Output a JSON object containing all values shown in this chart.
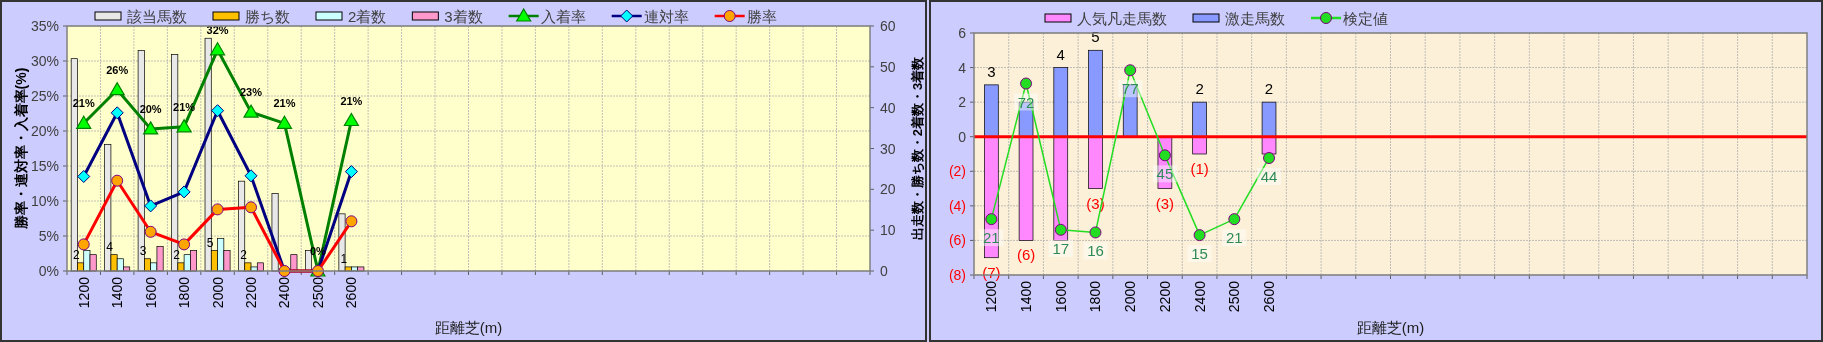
{
  "chart_data": [
    {
      "type": "bar",
      "xlabel": "距離芝(m)",
      "ylabel": "勝率・連対率・入着率(%)",
      "y2label": "出走数・勝ち数・2着数・3着数",
      "categories": [
        "1200",
        "1400",
        "1600",
        "1800",
        "2000",
        "2200",
        "2400",
        "2500",
        "2600",
        null,
        null,
        null,
        null,
        null,
        null,
        null,
        null,
        null,
        null,
        null,
        null,
        null,
        null,
        null
      ],
      "ylim": [
        0,
        35
      ],
      "yticks": [
        {
          "value": 0,
          "label": "0%"
        },
        {
          "value": 5,
          "label": "5%"
        },
        {
          "value": 10,
          "label": "10%"
        },
        {
          "value": 15,
          "label": "15%"
        },
        {
          "value": 20,
          "label": "20%"
        },
        {
          "value": 25,
          "label": "25%"
        },
        {
          "value": 30,
          "label": "30%"
        },
        {
          "value": 35,
          "label": "35%"
        }
      ],
      "y2lim": [
        0,
        60
      ],
      "y2ticks": [
        0,
        10,
        20,
        30,
        40,
        50,
        60
      ],
      "grid": true,
      "legend": "top",
      "series": [
        {
          "name": "該当馬数",
          "type": "bar",
          "axis": "y2",
          "color": "#e8e8e8",
          "values": [
            52,
            31,
            54,
            53,
            57,
            22,
            19,
            5,
            14,
            null,
            null,
            null,
            null,
            null,
            null,
            null,
            null,
            null,
            null,
            null,
            null,
            null,
            null,
            null
          ]
        },
        {
          "name": "勝ち数",
          "type": "bar",
          "axis": "y2",
          "color": "#ffc000",
          "values": [
            2,
            4,
            3,
            2,
            5,
            2,
            0,
            0,
            1,
            null,
            null,
            null,
            null,
            null,
            null,
            null,
            null,
            null,
            null,
            null,
            null,
            null,
            null,
            null
          ],
          "value_labels": [
            "2",
            "4",
            "3",
            "2",
            "5",
            "2",
            null,
            null,
            "1",
            null,
            null,
            null,
            null,
            null,
            null,
            null,
            null,
            null,
            null,
            null,
            null,
            null,
            null,
            null
          ]
        },
        {
          "name": "2着数",
          "type": "bar",
          "axis": "y2",
          "color": "#ccffff",
          "values": [
            5,
            3,
            2,
            4,
            8,
            1,
            0,
            0,
            1,
            null,
            null,
            null,
            null,
            null,
            null,
            null,
            null,
            null,
            null,
            null,
            null,
            null,
            null,
            null
          ]
        },
        {
          "name": "3着数",
          "type": "bar",
          "axis": "y2",
          "color": "#ff99cc",
          "values": [
            4,
            1,
            6,
            5,
            5,
            2,
            4,
            0,
            1,
            null,
            null,
            null,
            null,
            null,
            null,
            null,
            null,
            null,
            null,
            null,
            null,
            null,
            null,
            null
          ]
        },
        {
          "name": "入着率",
          "type": "line",
          "color": "#008000",
          "marker": "triangle",
          "values": [
            21.1,
            25.9,
            20.3,
            20.6,
            31.6,
            22.7,
            21.1,
            0,
            21.5,
            null,
            null,
            null,
            null,
            null,
            null,
            null,
            null,
            null,
            null,
            null,
            null,
            null,
            null,
            null
          ],
          "value_labels": [
            "21%",
            "26%",
            "20%",
            "21%",
            "32%",
            "23%",
            "21%",
            "0%",
            "21%",
            null,
            null,
            null,
            null,
            null,
            null,
            null,
            null,
            null,
            null,
            null,
            null,
            null,
            null,
            null
          ]
        },
        {
          "name": "連対率",
          "type": "line",
          "color": "#000080",
          "marker": "diamond",
          "values": [
            13.5,
            22.6,
            9.3,
            11.3,
            22.9,
            13.6,
            0,
            0,
            14.2,
            null,
            null,
            null,
            null,
            null,
            null,
            null,
            null,
            null,
            null,
            null,
            null,
            null,
            null,
            null
          ]
        },
        {
          "name": "勝率",
          "type": "line",
          "color": "#ff0000",
          "marker": "circle",
          "values": [
            3.8,
            12.9,
            5.6,
            3.8,
            8.8,
            9.1,
            0,
            0,
            7.1,
            null,
            null,
            null,
            null,
            null,
            null,
            null,
            null,
            null,
            null,
            null,
            null,
            null,
            null,
            null
          ]
        }
      ]
    },
    {
      "type": "bar",
      "xlabel": "距離芝(m)",
      "stacked": true,
      "categories": [
        "1200",
        "1400",
        "1600",
        "1800",
        "2000",
        "2200",
        "2400",
        "2500",
        "2600",
        null,
        null,
        null,
        null,
        null,
        null,
        null,
        null,
        null,
        null,
        null,
        null,
        null,
        null,
        null
      ],
      "ylim": [
        -8,
        6
      ],
      "yticks": [
        {
          "value": -8,
          "label": "(8)"
        },
        {
          "value": -6,
          "label": "(6)"
        },
        {
          "value": -4,
          "label": "(4)"
        },
        {
          "value": -2,
          "label": "(2)"
        },
        0,
        2,
        4,
        6
      ],
      "y2lim": [
        0,
        91
      ],
      "grid": true,
      "legend": "top",
      "ref_lines": [
        {
          "axis": "y",
          "value": 0,
          "color": "#ff0000"
        }
      ],
      "series": [
        {
          "name": "人気凡走馬数",
          "type": "bar",
          "color": "#ff88ff",
          "values": [
            -7,
            -6,
            -6,
            -3,
            0,
            -3,
            -1,
            0,
            -1,
            null,
            null,
            null,
            null,
            null,
            null,
            null,
            null,
            null,
            null,
            null,
            null,
            null,
            null,
            null
          ],
          "value_labels": [
            "(7)",
            "(6)",
            null,
            "(3)",
            null,
            "(3)",
            "(1)",
            null,
            null,
            null,
            null,
            null,
            null,
            null,
            null,
            null,
            null,
            null,
            null,
            null,
            null,
            null,
            null,
            null
          ]
        },
        {
          "name": "激走馬数",
          "type": "bar",
          "color": "#8899ff",
          "values": [
            3,
            2,
            4,
            5,
            3,
            0,
            2,
            0,
            2,
            null,
            null,
            null,
            null,
            null,
            null,
            null,
            null,
            null,
            null,
            null,
            null,
            null,
            null,
            null
          ],
          "value_labels": [
            "3",
            null,
            "4",
            "5",
            null,
            null,
            "2",
            null,
            "2",
            null,
            null,
            null,
            null,
            null,
            null,
            null,
            null,
            null,
            null,
            null,
            null,
            null,
            null,
            null
          ]
        },
        {
          "name": "検定値",
          "type": "line",
          "axis": "y2",
          "color": "#22dd22",
          "marker": "circle",
          "values": [
            21,
            72,
            17,
            16,
            77,
            45,
            15,
            21,
            44,
            null,
            null,
            null,
            null,
            null,
            null,
            null,
            null,
            null,
            null,
            null,
            null,
            null,
            null,
            null
          ],
          "value_labels": [
            "21",
            "72",
            "17",
            "16",
            "77",
            "45",
            "15",
            "21",
            "44",
            null,
            null,
            null,
            null,
            null,
            null,
            null,
            null,
            null,
            null,
            null,
            null,
            null,
            null,
            null
          ]
        }
      ]
    }
  ]
}
